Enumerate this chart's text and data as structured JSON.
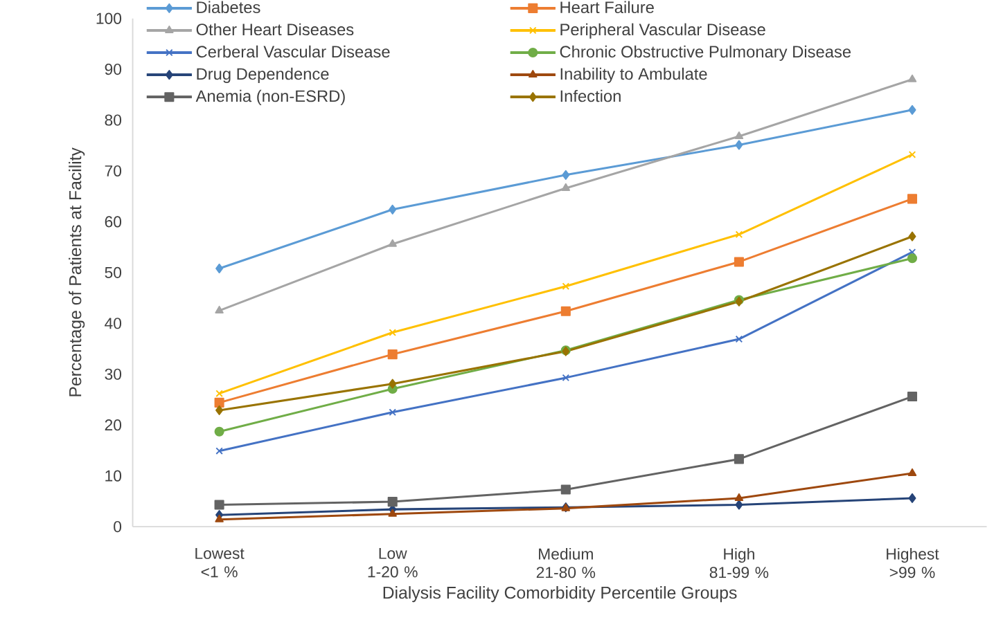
{
  "chart_data": {
    "type": "line",
    "xlabel": "Dialysis Facility Comorbidity Percentile Groups",
    "ylabel": "Percentage of Patients at Facility",
    "categories": [
      "Lowest <1 %",
      "Low 1-20 %",
      "Medium 21-80 %",
      "High 81-99 %",
      "Highest >99 %"
    ],
    "ylim": [
      0,
      100
    ],
    "yticks": [
      0,
      10,
      20,
      30,
      40,
      50,
      60,
      70,
      80,
      90,
      100
    ],
    "grid": false,
    "legend": "top",
    "line_style": "solid",
    "series": [
      {
        "name": "Diabetes",
        "color": "#5b9bd5",
        "marker": "diamond",
        "values": [
          50.8,
          62.4,
          69.2,
          75.1,
          82.0
        ]
      },
      {
        "name": "Heart Failure",
        "color": "#ed7d31",
        "marker": "square",
        "values": [
          24.4,
          33.9,
          42.4,
          52.1,
          64.5
        ]
      },
      {
        "name": "Other Heart Diseases",
        "color": "#a5a5a5",
        "marker": "triangle",
        "values": [
          42.5,
          55.6,
          66.6,
          76.8,
          88.0
        ]
      },
      {
        "name": "Peripheral Vascular Disease",
        "color": "#ffc000",
        "marker": "cross",
        "values": [
          26.2,
          38.2,
          47.3,
          57.5,
          73.2
        ]
      },
      {
        "name": "Cerberal Vascular Disease",
        "color": "#4472c4",
        "marker": "cross",
        "values": [
          14.9,
          22.5,
          29.3,
          36.9,
          54.0
        ]
      },
      {
        "name": "Chronic Obstructive Pulmonary Disease",
        "color": "#70ad47",
        "marker": "circle",
        "values": [
          18.7,
          27.1,
          34.7,
          44.6,
          52.8
        ]
      },
      {
        "name": "Drug Dependence",
        "color": "#264478",
        "marker": "diamond",
        "values": [
          2.3,
          3.4,
          3.8,
          4.3,
          5.6
        ]
      },
      {
        "name": "Inability to Ambulate",
        "color": "#9e480e",
        "marker": "triangle",
        "values": [
          1.4,
          2.5,
          3.6,
          5.6,
          10.5
        ]
      },
      {
        "name": "Anemia (non-ESRD)",
        "color": "#636363",
        "marker": "square",
        "values": [
          4.3,
          4.9,
          7.3,
          13.3,
          25.6
        ]
      },
      {
        "name": "Infection",
        "color": "#997300",
        "marker": "diamond",
        "values": [
          22.9,
          28.1,
          34.5,
          44.3,
          57.1
        ]
      }
    ]
  }
}
